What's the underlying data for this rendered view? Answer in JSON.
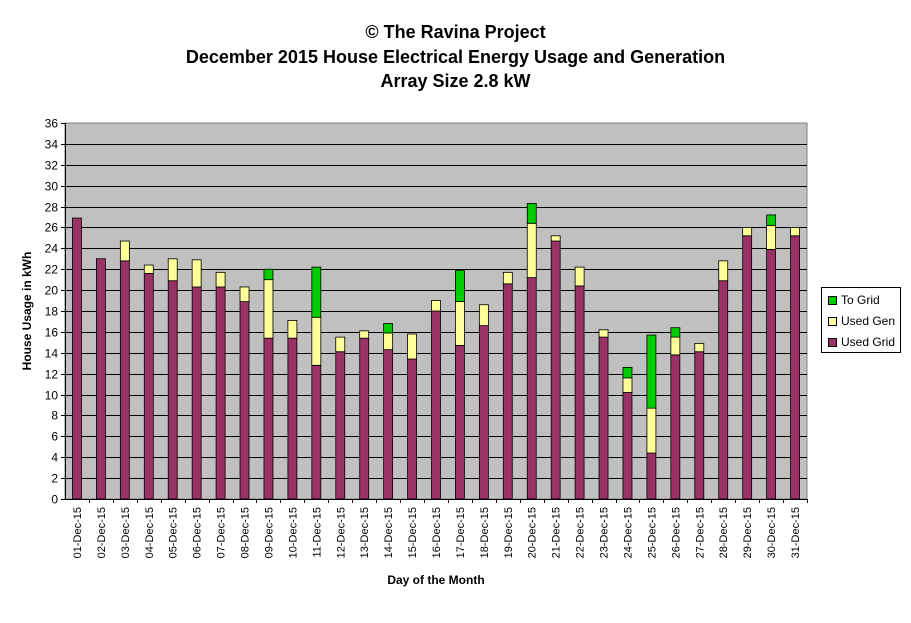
{
  "titles": {
    "line1": "© The Ravina Project",
    "line2": "December 2015 House Electrical Energy Usage and Generation",
    "line3": "Array Size 2.8 kW"
  },
  "colors": {
    "plot_bg": "#c0c0c0",
    "used_grid": "#993366",
    "used_gen": "#ffff99",
    "to_grid": "#00cc00"
  },
  "chart_data": {
    "type": "bar",
    "stacked": true,
    "xlabel": "Day of the Month",
    "ylabel": "House Usage in kWh",
    "ylim": [
      0,
      36
    ],
    "ytick_step": 2,
    "grid": true,
    "legend_position": "right",
    "categories": [
      "01-Dec-15",
      "02-Dec-15",
      "03-Dec-15",
      "04-Dec-15",
      "05-Dec-15",
      "06-Dec-15",
      "07-Dec-15",
      "08-Dec-15",
      "09-Dec-15",
      "10-Dec-15",
      "11-Dec-15",
      "12-Dec-15",
      "13-Dec-15",
      "14-Dec-15",
      "15-Dec-15",
      "16-Dec-15",
      "17-Dec-15",
      "18-Dec-15",
      "19-Dec-15",
      "20-Dec-15",
      "21-Dec-15",
      "22-Dec-15",
      "23-Dec-15",
      "24-Dec-15",
      "25-Dec-15",
      "26-Dec-15",
      "27-Dec-15",
      "28-Dec-15",
      "29-Dec-15",
      "30-Dec-15",
      "31-Dec-15"
    ],
    "series": [
      {
        "name": "Used Grid",
        "color": "#993366",
        "values": [
          26.9,
          23.0,
          22.8,
          21.6,
          20.9,
          20.3,
          20.3,
          18.9,
          15.4,
          15.4,
          12.8,
          14.1,
          15.4,
          14.3,
          13.4,
          18.0,
          14.7,
          16.6,
          20.6,
          21.2,
          24.7,
          20.4,
          15.5,
          10.2,
          4.4,
          13.8,
          14.1,
          20.9,
          25.2,
          23.9,
          25.2
        ]
      },
      {
        "name": "Used Gen",
        "color": "#ffff99",
        "values": [
          0,
          0,
          1.9,
          0.8,
          2.1,
          2.6,
          1.4,
          1.4,
          5.6,
          1.7,
          4.6,
          1.4,
          0.7,
          1.6,
          2.4,
          1.0,
          4.2,
          2.0,
          1.1,
          5.2,
          0.5,
          1.8,
          0.7,
          1.4,
          4.3,
          1.7,
          0.8,
          1.9,
          0.8,
          2.3,
          0.8
        ]
      },
      {
        "name": "To Grid",
        "color": "#00cc00",
        "values": [
          0,
          0,
          0,
          0,
          0,
          0,
          0,
          0,
          1.0,
          0,
          4.8,
          0,
          0,
          0.9,
          0,
          0,
          3.0,
          0,
          0,
          1.9,
          0,
          0,
          0,
          1.0,
          7.0,
          0.9,
          0,
          0,
          0,
          1.0,
          0
        ]
      }
    ]
  }
}
